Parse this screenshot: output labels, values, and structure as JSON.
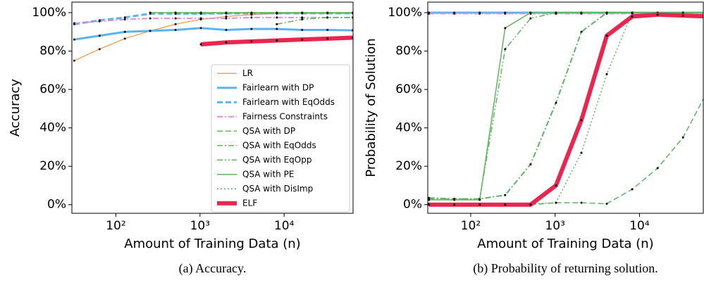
{
  "chart_data": [
    {
      "type": "line",
      "caption": "(a) Accuracy.",
      "xlabel": "Amount of Training Data (n)",
      "ylabel": "Accuracy",
      "xscale": "log",
      "xlim": [
        30,
        66000
      ],
      "ylim": [
        -4.5,
        105.5
      ],
      "xticks": [
        {
          "value": 100,
          "label": "10²"
        },
        {
          "value": 1000,
          "label": "10³"
        },
        {
          "value": 10000,
          "label": "10⁴"
        }
      ],
      "yticks": [
        {
          "value": 0,
          "label": "0%"
        },
        {
          "value": 20,
          "label": "20%"
        },
        {
          "value": 40,
          "label": "40%"
        },
        {
          "value": 60,
          "label": "60%"
        },
        {
          "value": 80,
          "label": "80%"
        },
        {
          "value": 100,
          "label": "100%"
        }
      ],
      "legend": "lower right",
      "x": [
        32,
        64,
        128,
        256,
        512,
        1024,
        2048,
        4096,
        8192,
        16384,
        32768,
        65536
      ],
      "series": [
        {
          "name": "LR",
          "color": "#f5913f",
          "style": "solid",
          "linewidth": 1.2,
          "values": [
            75,
            81,
            86.5,
            90.5,
            94,
            96.5,
            98,
            99,
            99.5,
            99.7,
            99.8,
            99.9
          ]
        },
        {
          "name": "Fairlearn with DP",
          "color": "#5ab4f0",
          "style": "solid",
          "linewidth": 3,
          "values": [
            86,
            88,
            90,
            90.5,
            91,
            92,
            91,
            91.5,
            91.5,
            91,
            91,
            90.8
          ]
        },
        {
          "name": "Fairlearn with EqOdds",
          "color": "#5ab4f0",
          "style": "dashed",
          "linewidth": 3,
          "values": [
            94,
            96,
            97.5,
            99.5,
            99.5,
            99.5,
            99.6,
            99.7,
            99.7,
            99.7,
            99.7,
            99.7
          ]
        },
        {
          "name": "Fairness Constraints",
          "color": "#e48be0",
          "style": "dashdot",
          "linewidth": 2,
          "values": [
            94.5,
            95.5,
            96.5,
            97,
            97,
            97,
            97,
            97.5,
            97.5,
            97.5,
            97.5,
            97.5
          ]
        },
        {
          "name": "QSA with DP",
          "color": "#5cb85c",
          "style": "dashed",
          "linewidth": 1.5,
          "values": [
            null,
            null,
            null,
            100,
            100,
            100,
            100,
            100,
            100,
            100,
            100,
            100
          ]
        },
        {
          "name": "QSA with EqOdds",
          "color": "#5cb85c",
          "style": "dashdot",
          "linewidth": 1.5,
          "values": [
            null,
            null,
            null,
            null,
            null,
            null,
            null,
            null,
            94,
            96.5,
            97.5,
            97.5
          ]
        },
        {
          "name": "QSA with EqOpp",
          "color": "#5cb85c",
          "style": "dashdotdot",
          "linewidth": 1.5,
          "values": [
            null,
            null,
            null,
            null,
            99.5,
            99.6,
            99.6,
            99.7,
            99.7,
            99.7,
            99.7,
            99.7
          ]
        },
        {
          "name": "QSA with PE",
          "color": "#5cb85c",
          "style": "solid",
          "linewidth": 1.5,
          "values": [
            null,
            null,
            null,
            100,
            100,
            100,
            100,
            100,
            100,
            100,
            100,
            100
          ]
        },
        {
          "name": "QSA with DisImp",
          "color": "#5cb85c",
          "style": "dotted",
          "linewidth": 1.5,
          "values": [
            null,
            null,
            null,
            null,
            null,
            null,
            99.8,
            99.8,
            99.8,
            99.8,
            99.8,
            99.8
          ]
        },
        {
          "name": "ELF",
          "color": "#e8264f",
          "style": "solid",
          "linewidth": 6,
          "values": [
            null,
            null,
            null,
            null,
            null,
            83.5,
            84.5,
            85,
            85.5,
            86,
            86.5,
            87
          ]
        }
      ]
    },
    {
      "type": "line",
      "caption": "(b) Probability of returning solution.",
      "xlabel": "Amount of Training Data (n)",
      "ylabel": "Probability of Solution",
      "xscale": "log",
      "xlim": [
        31,
        57000
      ],
      "ylim": [
        -4.5,
        105.5
      ],
      "xticks": [
        {
          "value": 100,
          "label": "10²"
        },
        {
          "value": 1000,
          "label": "10³"
        },
        {
          "value": 10000,
          "label": "10⁴"
        }
      ],
      "yticks": [
        {
          "value": 0,
          "label": "0%"
        },
        {
          "value": 20,
          "label": "20%"
        },
        {
          "value": 40,
          "label": "40%"
        },
        {
          "value": 60,
          "label": "60%"
        },
        {
          "value": 80,
          "label": "80%"
        },
        {
          "value": 100,
          "label": "100%"
        }
      ],
      "x": [
        32,
        64,
        128,
        256,
        512,
        1024,
        2048,
        4096,
        8192,
        16384,
        32768,
        65536
      ],
      "series": [
        {
          "color": "#f5913f",
          "style": "solid",
          "linewidth": 1.2,
          "values": [
            100,
            100,
            100,
            100,
            100,
            100,
            100,
            100,
            100,
            100,
            100,
            100
          ]
        },
        {
          "color": "#5ab4f0",
          "style": "solid",
          "linewidth": 3,
          "values": [
            100,
            100,
            100,
            100,
            100,
            100,
            100,
            100,
            100,
            100,
            100,
            100
          ]
        },
        {
          "color": "#5ab4f0",
          "style": "dashed",
          "linewidth": 3,
          "values": [
            100,
            100,
            100,
            100,
            100,
            100,
            100,
            100,
            100,
            100,
            100,
            100
          ]
        },
        {
          "color": "#e48be0",
          "style": "dashdot",
          "linewidth": 2,
          "values": [
            99.5,
            99.5,
            99.5,
            99.5,
            99.5,
            99.5,
            99.5,
            99.5,
            99.5,
            99.5,
            99.5,
            99.5
          ]
        },
        {
          "color": "#5cb85c",
          "style": "dashed",
          "linewidth": 1.5,
          "values": [
            0,
            0,
            0,
            0,
            0,
            1,
            1,
            0.5,
            8,
            19,
            35,
            60
          ]
        },
        {
          "color": "#5cb85c",
          "style": "dashdot",
          "linewidth": 2,
          "values": [
            3.5,
            3,
            3,
            5,
            21,
            53,
            90,
            100,
            100,
            100,
            100,
            100
          ]
        },
        {
          "color": "#5cb85c",
          "style": "dashdotdot",
          "linewidth": 1.5,
          "values": [
            3,
            3,
            3,
            81,
            97,
            100,
            100,
            100,
            100,
            100,
            100,
            100
          ]
        },
        {
          "color": "#5cb85c",
          "style": "solid",
          "linewidth": 1.5,
          "values": [
            2.5,
            2.5,
            2.5,
            92,
            100,
            100,
            100,
            100,
            100,
            100,
            100,
            100
          ]
        },
        {
          "color": "#5cb85c",
          "style": "dotted",
          "linewidth": 1.5,
          "values": [
            0.5,
            0.5,
            0.5,
            0.5,
            0.5,
            1,
            27,
            68,
            100,
            100,
            100,
            100
          ]
        },
        {
          "color": "#e8264f",
          "style": "solid",
          "linewidth": 6,
          "values": [
            0,
            0,
            0,
            0,
            0,
            10,
            44,
            88,
            98,
            99,
            98.5,
            98
          ]
        }
      ]
    }
  ]
}
